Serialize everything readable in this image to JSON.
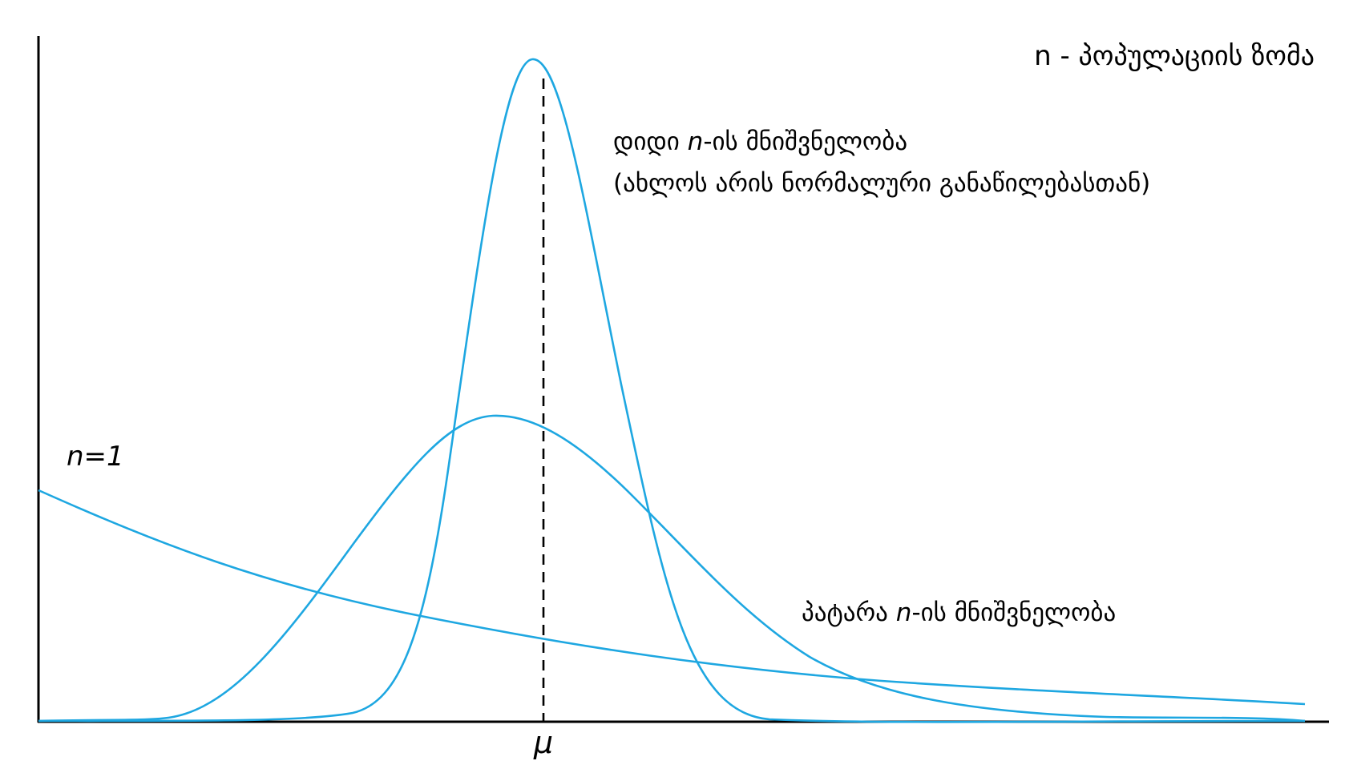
{
  "title": "n - პოპულაციის ზომა",
  "label_n1": "n=1",
  "label_large": {
    "line1_prefix": "დიდი ",
    "line1_var": "n",
    "line1_suffix": "-ის მნიშვნელობა",
    "line2": "(ახლოს არის ნორმალური განაწილებასთან)"
  },
  "label_small": {
    "prefix": "პატარა ",
    "var": "n",
    "suffix": "-ის მნიშვნელობა"
  },
  "mu_label": "μ",
  "colors": {
    "curve": "#1ea7e1",
    "axis": "#000000"
  }
}
